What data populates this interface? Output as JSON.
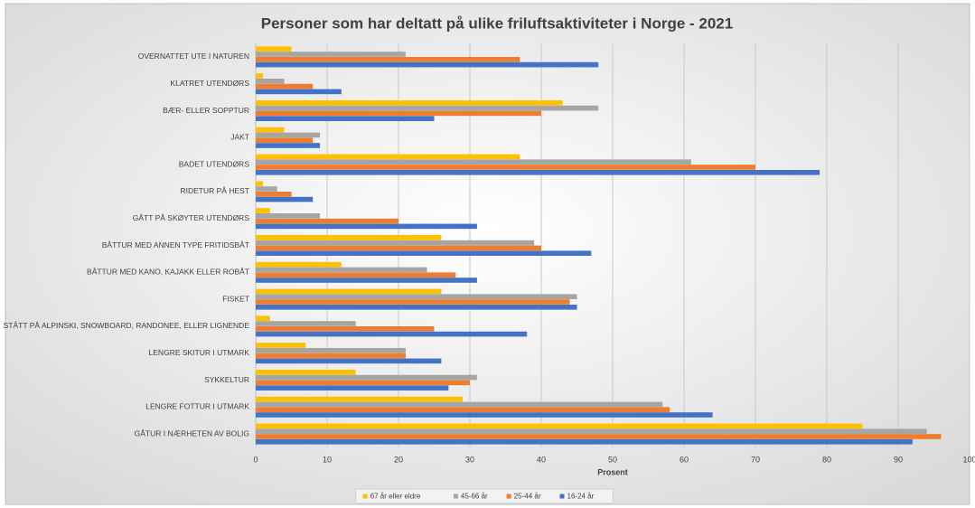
{
  "chart_data": {
    "type": "bar",
    "orientation": "horizontal",
    "title": "Personer som har deltatt på ulike friluftsaktiviteter i Norge - 2021",
    "xlabel": "Prosent",
    "categories": [
      "OVERNATTET UTE I NATUREN",
      "KLATRET UTENDØRS",
      "BÆR- ELLER SOPPTUR",
      "JAKT",
      "BADET UTENDØRS",
      "RIDETUR PÅ HEST",
      "GÅTT PÅ SKØYTER UTENDØRS",
      "BÅTTUR MED ANNEN TYPE FRITIDSBÅT",
      "BÅTTUR MED KANO, KAJAKK ELLER ROBÅT",
      "FISKET",
      "STÅTT PÅ ALPINSKI, SNOWBOARD, RANDONEE, ELLER LIGNENDE",
      "LENGRE SKITUR I UTMARK",
      "SYKKELTUR",
      "LENGRE FOTTUR I UTMARK",
      "GÅTUR I NÆRHETEN AV BOLIG"
    ],
    "series": [
      {
        "name": "67 år eller eldre",
        "color": "#ffc000",
        "values": [
          5,
          1,
          43,
          4,
          37,
          1,
          2,
          26,
          12,
          26,
          2,
          7,
          14,
          29,
          85
        ]
      },
      {
        "name": "45-66 år",
        "color": "#a5a5a5",
        "values": [
          21,
          4,
          48,
          9,
          61,
          3,
          9,
          39,
          24,
          45,
          14,
          21,
          31,
          57,
          94
        ]
      },
      {
        "name": "25-44 år",
        "color": "#ed7d31",
        "values": [
          37,
          8,
          40,
          8,
          70,
          5,
          20,
          40,
          28,
          44,
          25,
          21,
          30,
          58,
          96
        ]
      },
      {
        "name": "16-24 år",
        "color": "#4472c4",
        "values": [
          48,
          12,
          25,
          9,
          79,
          8,
          31,
          47,
          31,
          45,
          38,
          26,
          27,
          64,
          92
        ]
      }
    ],
    "xlim": [
      0,
      100
    ],
    "xticks": [
      0,
      10,
      20,
      30,
      40,
      50,
      60,
      70,
      80,
      90,
      100
    ],
    "grid": true,
    "legend": "bottom"
  }
}
